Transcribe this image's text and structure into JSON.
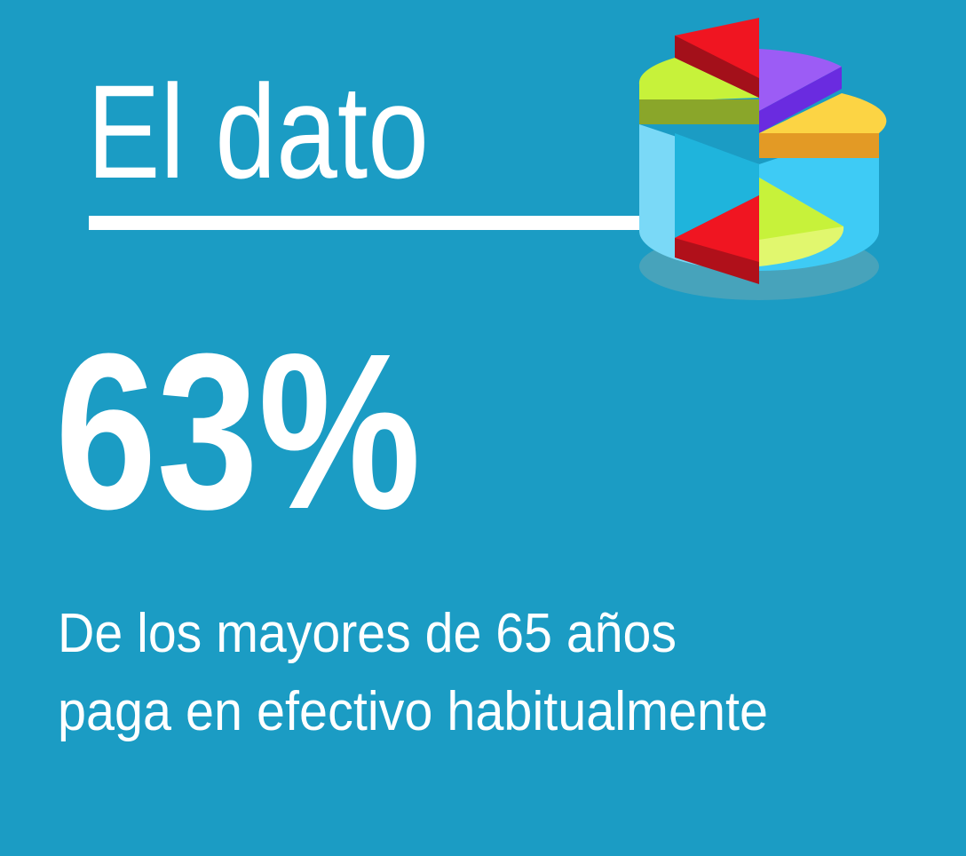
{
  "header": {
    "title": "El dato"
  },
  "stat": {
    "value": "63%"
  },
  "description": [
    "De los mayores de 65 años",
    "paga en efectivo habitualmente"
  ]
}
